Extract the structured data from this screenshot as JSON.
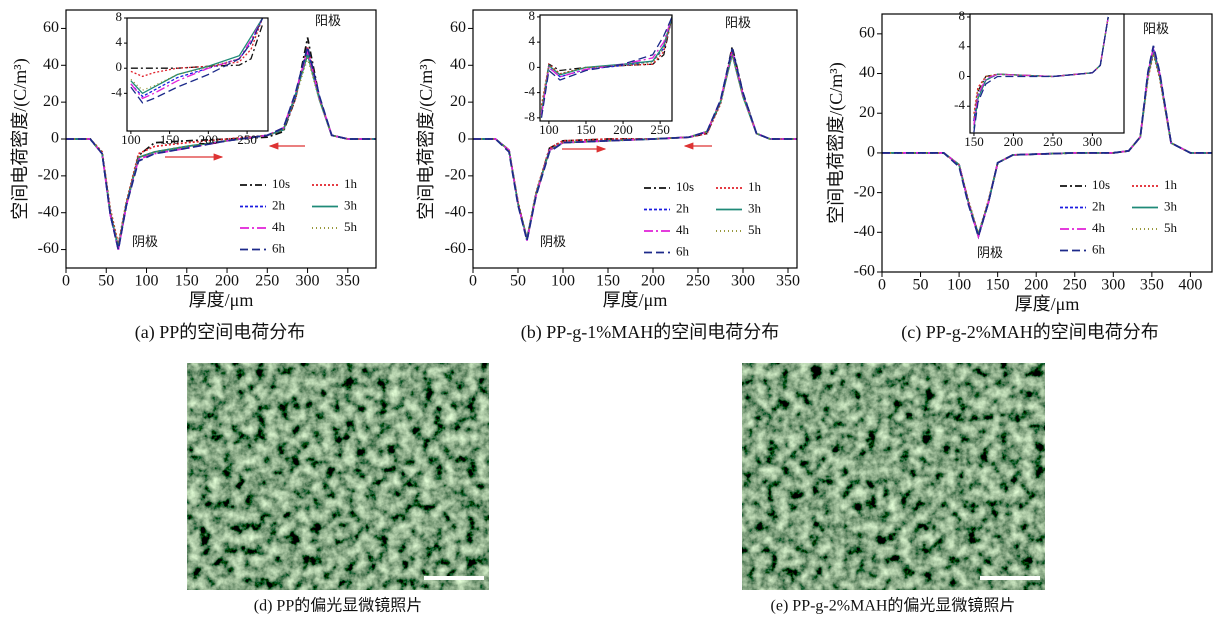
{
  "chart_data": [
    {
      "type": "line",
      "caption": "(a) PP的空间电荷分布",
      "xlabel": "厚度/μm",
      "ylabel": "空间电荷密度/(C/m³)",
      "xlim": [
        0,
        385
      ],
      "xticks": [
        0,
        50,
        100,
        150,
        200,
        250,
        300,
        350
      ],
      "ylim": [
        -70,
        70
      ],
      "yticks": [
        -60,
        -40,
        -20,
        0,
        20,
        40,
        60
      ],
      "annotations": [
        "阴极",
        "阳极"
      ],
      "legend": "lower right",
      "x": [
        0,
        30,
        45,
        55,
        65,
        75,
        90,
        110,
        150,
        200,
        250,
        270,
        285,
        300,
        315,
        330,
        350,
        385
      ],
      "series": [
        {
          "name": "10s",
          "color": "#111111",
          "dash": "7,3,2,3",
          "values": [
            0,
            0,
            -8,
            -40,
            -59,
            -35,
            -9,
            -2,
            -1,
            0,
            1,
            4,
            22,
            55,
            22,
            2,
            0,
            0
          ]
        },
        {
          "name": "1h",
          "color": "#e0202a",
          "dash": "2,2",
          "values": [
            0,
            0,
            -7,
            -38,
            -57,
            -34,
            -8,
            -4,
            -2,
            0,
            2,
            5,
            22,
            50,
            22,
            2,
            0,
            0
          ]
        },
        {
          "name": "2h",
          "color": "#1c1ce0",
          "dash": "3,2",
          "values": [
            0,
            0,
            -8,
            -41,
            -60,
            -36,
            -10,
            -7,
            -4,
            -1,
            2,
            5,
            23,
            48,
            22,
            2,
            0,
            0
          ]
        },
        {
          "name": "3h",
          "color": "#1f8a78",
          "dash": "none",
          "values": [
            0,
            0,
            -8,
            -40,
            -59,
            -35,
            -10,
            -7,
            -4,
            -1,
            2,
            5,
            24,
            46,
            21,
            2,
            0,
            0
          ]
        },
        {
          "name": "4h",
          "color": "#e020d8",
          "dash": "9,3,2,3",
          "values": [
            0,
            0,
            -8,
            -41,
            -60,
            -36,
            -11,
            -8,
            -5,
            -1,
            2,
            6,
            25,
            48,
            22,
            2,
            0,
            0
          ]
        },
        {
          "name": "5h",
          "color": "#8a8a20",
          "dash": "1,3",
          "values": [
            0,
            0,
            -7,
            -39,
            -58,
            -35,
            -10,
            -7,
            -4,
            -1,
            2,
            5,
            23,
            44,
            21,
            2,
            0,
            0
          ]
        },
        {
          "name": "6h",
          "color": "#1c2a8a",
          "dash": "8,4",
          "values": [
            0,
            0,
            -8,
            -41,
            -60,
            -36,
            -12,
            -8,
            -5,
            -1,
            2,
            6,
            25,
            50,
            23,
            2,
            0,
            0
          ]
        }
      ],
      "inset": {
        "xlim": [
          95,
          277
        ],
        "xticks": [
          100,
          150,
          200,
          250
        ],
        "ylim": [
          -10,
          8
        ],
        "yticks": [
          -4,
          0,
          4,
          8
        ],
        "x": [
          100,
          115,
          130,
          160,
          200,
          240,
          255,
          270
        ],
        "series": [
          {
            "values": [
              0,
              0,
              0,
              0,
              0.3,
              0.5,
              1.5,
              7
            ]
          },
          {
            "values": [
              -0.5,
              -1.3,
              -0.7,
              0,
              0.3,
              1,
              3,
              8
            ]
          },
          {
            "values": [
              -2.5,
              -4.5,
              -3.5,
              -1.5,
              0,
              1.5,
              4,
              8
            ]
          },
          {
            "values": [
              -2,
              -4,
              -3,
              -1,
              0.3,
              2,
              5,
              8
            ]
          },
          {
            "values": [
              -2.5,
              -4.8,
              -4,
              -2,
              0,
              1.5,
              4.5,
              8
            ]
          },
          {
            "values": [
              -1.8,
              -3.5,
              -2.8,
              -1,
              0.2,
              1.5,
              4,
              8
            ]
          },
          {
            "values": [
              -3,
              -5.5,
              -4.8,
              -3,
              -1,
              1.5,
              4,
              8
            ]
          }
        ]
      }
    },
    {
      "type": "line",
      "caption": "(b) PP-g-1%MAH的空间电荷分布",
      "xlabel": "厚度/μm",
      "ylabel": "空间电荷密度/(C/m³)",
      "xlim": [
        0,
        360
      ],
      "xticks": [
        0,
        50,
        100,
        150,
        200,
        250,
        300,
        350
      ],
      "ylim": [
        -70,
        70
      ],
      "yticks": [
        -60,
        -40,
        -20,
        0,
        20,
        40,
        60
      ],
      "annotations": [
        "阴极",
        "阳极"
      ],
      "legend": "lower right",
      "x": [
        0,
        25,
        40,
        50,
        60,
        70,
        85,
        100,
        150,
        200,
        240,
        260,
        275,
        288,
        300,
        315,
        330,
        360
      ],
      "series": [
        {
          "name": "10s",
          "color": "#111111",
          "dash": "7,3,2,3",
          "values": [
            0,
            0,
            -6,
            -35,
            -55,
            -30,
            -5,
            -1,
            0,
            0,
            1,
            3,
            20,
            50,
            25,
            3,
            0,
            0
          ]
        },
        {
          "name": "1h",
          "color": "#e0202a",
          "dash": "2,2",
          "values": [
            0,
            0,
            -6,
            -34,
            -54,
            -29,
            -5,
            -1,
            0,
            0,
            1,
            3,
            19,
            48,
            24,
            3,
            0,
            0
          ]
        },
        {
          "name": "2h",
          "color": "#1c1ce0",
          "dash": "3,2",
          "values": [
            0,
            0,
            -6,
            -35,
            -55,
            -30,
            -6,
            -2,
            -1,
            0,
            1,
            4,
            20,
            47,
            24,
            3,
            0,
            0
          ]
        },
        {
          "name": "3h",
          "color": "#1f8a78",
          "dash": "none",
          "values": [
            0,
            0,
            -6,
            -35,
            -54,
            -30,
            -6,
            -2,
            -1,
            0,
            1,
            4,
            20,
            46,
            23,
            3,
            0,
            0
          ]
        },
        {
          "name": "4h",
          "color": "#e020d8",
          "dash": "9,3,2,3",
          "values": [
            0,
            0,
            -6,
            -35,
            -55,
            -31,
            -6,
            -2,
            -1,
            0,
            1,
            4,
            21,
            48,
            24,
            3,
            0,
            0
          ]
        },
        {
          "name": "5h",
          "color": "#8a8a20",
          "dash": "1,3",
          "values": [
            0,
            0,
            -6,
            -34,
            -54,
            -30,
            -6,
            -2,
            -1,
            0,
            1,
            4,
            20,
            46,
            23,
            3,
            0,
            0
          ]
        },
        {
          "name": "6h",
          "color": "#1c2a8a",
          "dash": "8,4",
          "values": [
            0,
            0,
            -7,
            -36,
            -55,
            -31,
            -7,
            -2,
            -1,
            0,
            1,
            4,
            21,
            49,
            25,
            3,
            0,
            0
          ]
        }
      ],
      "inset": {
        "xlim": [
          88,
          266
        ],
        "xticks": [
          100,
          150,
          200,
          250
        ],
        "ylim": [
          -8.5,
          8.3
        ],
        "yticks": [
          -8,
          -4,
          0,
          4,
          8
        ],
        "x": [
          90,
          100,
          115,
          150,
          200,
          240,
          255,
          266
        ],
        "series": [
          {
            "values": [
              -7,
              0.5,
              -0.5,
              0,
              0.3,
              0.5,
              2,
              8
            ]
          },
          {
            "values": [
              -6,
              0.5,
              -1,
              0,
              0.3,
              0.5,
              2.5,
              8
            ]
          },
          {
            "values": [
              -7.5,
              0,
              -1.5,
              -0.3,
              0.3,
              1,
              3,
              8
            ]
          },
          {
            "values": [
              -7,
              0.3,
              -1.2,
              0,
              0.5,
              1,
              3.5,
              8
            ]
          },
          {
            "values": [
              -7.5,
              0,
              -1.5,
              -0.3,
              0.5,
              1.5,
              4,
              8
            ]
          },
          {
            "values": [
              -6.5,
              0.2,
              -1,
              0,
              0.3,
              0.8,
              3,
              8
            ]
          },
          {
            "values": [
              -8,
              -0.5,
              -2,
              -0.5,
              0.5,
              2,
              5,
              8
            ]
          }
        ]
      }
    },
    {
      "type": "line",
      "caption": "(c) PP-g-2%MAH的空间电荷分布",
      "xlabel": "厚度/μm",
      "ylabel": "空间电荷密度/(C/m³)",
      "xlim": [
        0,
        428
      ],
      "xticks": [
        0,
        50,
        100,
        150,
        200,
        250,
        300,
        350,
        400
      ],
      "ylim": [
        -60,
        70
      ],
      "yticks": [
        -60,
        -40,
        -20,
        0,
        20,
        40,
        60
      ],
      "annotations": [
        "阴极",
        "阳极"
      ],
      "legend": "lower right",
      "x": [
        0,
        80,
        100,
        112,
        125,
        138,
        150,
        170,
        250,
        300,
        320,
        335,
        345,
        352,
        360,
        375,
        400,
        428
      ],
      "series": [
        {
          "name": "10s",
          "color": "#111111",
          "dash": "7,3,2,3",
          "values": [
            0,
            0,
            -6,
            -25,
            -42,
            -25,
            -5,
            -1,
            0,
            0,
            1,
            8,
            40,
            52,
            40,
            5,
            0,
            0
          ]
        },
        {
          "name": "1h",
          "color": "#e0202a",
          "dash": "2,2",
          "values": [
            0,
            0,
            -6,
            -24,
            -41,
            -24,
            -5,
            -1,
            0,
            0,
            1,
            8,
            38,
            50,
            38,
            5,
            0,
            0
          ]
        },
        {
          "name": "2h",
          "color": "#1c1ce0",
          "dash": "3,2",
          "values": [
            0,
            0,
            -6,
            -25,
            -42,
            -25,
            -5,
            -1,
            0,
            0,
            1,
            8,
            40,
            52,
            40,
            5,
            0,
            0
          ]
        },
        {
          "name": "3h",
          "color": "#1f8a78",
          "dash": "none",
          "values": [
            0,
            0,
            -6,
            -25,
            -41,
            -25,
            -5,
            -1,
            0,
            0,
            1,
            8,
            39,
            51,
            39,
            5,
            0,
            0
          ]
        },
        {
          "name": "4h",
          "color": "#e020d8",
          "dash": "9,3,2,3",
          "values": [
            0,
            0,
            -6,
            -25,
            -42,
            -25,
            -5,
            -1,
            0,
            0,
            1,
            8,
            40,
            53,
            40,
            5,
            0,
            0
          ]
        },
        {
          "name": "5h",
          "color": "#8a8a20",
          "dash": "1,3",
          "values": [
            0,
            0,
            -6,
            -24,
            -41,
            -24,
            -5,
            -1,
            0,
            0,
            1,
            8,
            38,
            50,
            38,
            5,
            0,
            0
          ]
        },
        {
          "name": "6h",
          "color": "#1c2a8a",
          "dash": "8,4",
          "values": [
            0,
            0,
            -7,
            -26,
            -42,
            -25,
            -5,
            -1,
            0,
            0,
            1,
            8,
            41,
            54,
            41,
            5,
            0,
            0
          ]
        }
      ],
      "inset": {
        "xlim": [
          145,
          340
        ],
        "xticks": [
          150,
          200,
          250,
          300
        ],
        "ylim": [
          -7.6,
          8.4
        ],
        "yticks": [
          -4,
          0,
          4,
          8
        ],
        "x": [
          150,
          155,
          165,
          180,
          250,
          300,
          310,
          320
        ],
        "series": [
          {
            "values": [
              -6,
              -2,
              0,
              0.3,
              0,
              0.5,
              1.5,
              8
            ]
          },
          {
            "values": [
              -5,
              -1.5,
              0,
              0.3,
              0,
              0.5,
              1.5,
              8
            ]
          },
          {
            "values": [
              -6,
              -2.5,
              -0.5,
              0.3,
              0,
              0.5,
              1.5,
              8
            ]
          },
          {
            "values": [
              -7,
              -3,
              -0.5,
              0.3,
              0,
              0.5,
              1.5,
              8
            ]
          },
          {
            "values": [
              -6.5,
              -2.5,
              -0.3,
              0.3,
              0,
              0.5,
              1.5,
              8
            ]
          },
          {
            "values": [
              -5.5,
              -2,
              0,
              0.3,
              0,
              0.5,
              1.5,
              8
            ]
          },
          {
            "values": [
              -7.5,
              -3.5,
              -1,
              0,
              0,
              0.5,
              1.5,
              8
            ]
          }
        ]
      }
    }
  ],
  "photos": [
    {
      "caption": "(d) PP的偏光显微镜照片"
    },
    {
      "caption": "(e) PP-g-2%MAH的偏光显微镜照片"
    }
  ]
}
